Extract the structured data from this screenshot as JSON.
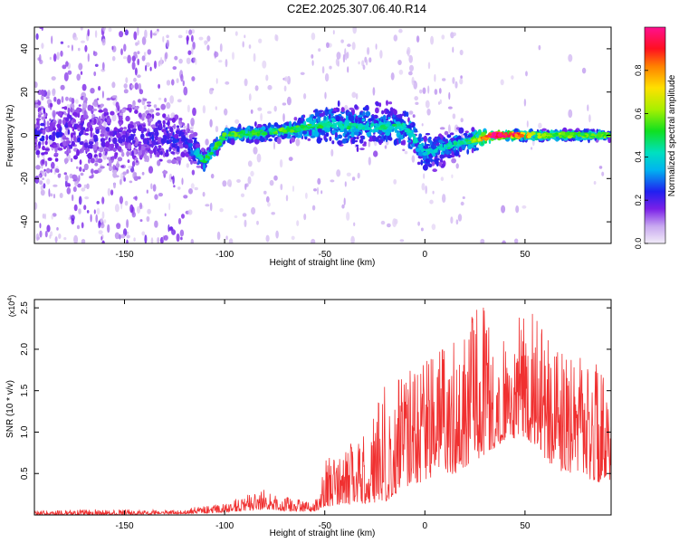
{
  "title": "C2E2.2025.307.06.40.R14",
  "colors": {
    "snr_line": "#f03030",
    "axes": "#000000",
    "background": "#ffffff"
  },
  "chart_data": [
    {
      "type": "heatmap",
      "name": "spectrogram",
      "xlabel": "Height of straight line (km)",
      "ylabel": "Frequency (Hz)",
      "xlim": [
        -195,
        93
      ],
      "ylim": [
        -50,
        50
      ],
      "xticks": [
        -150,
        -100,
        -50,
        0,
        50
      ],
      "yticks": [
        -40,
        -20,
        0,
        20,
        40
      ],
      "colorbar": {
        "label": "Normalized spectral amplitude",
        "range": [
          0.0,
          1.0
        ],
        "ticks": [
          0.0,
          0.2,
          0.4,
          0.6,
          0.8
        ],
        "tick_labels": [
          "0.0",
          "0.2",
          "0.4",
          "0.6",
          "0.8"
        ],
        "colormap": "rainbow (white/lavender - violet - blue - cyan - green - yellow - red - magenta)"
      },
      "ridge_profile": [
        {
          "x": -190,
          "f": 0,
          "spread": 30,
          "amp": 0.22
        },
        {
          "x": -150,
          "f": 0,
          "spread": 30,
          "amp": 0.2
        },
        {
          "x": -120,
          "f": -2,
          "spread": 12,
          "amp": 0.28
        },
        {
          "x": -110,
          "f": -12,
          "spread": 6,
          "amp": 0.45
        },
        {
          "x": -100,
          "f": 0,
          "spread": 4,
          "amp": 0.5
        },
        {
          "x": -70,
          "f": 2,
          "spread": 5,
          "amp": 0.5
        },
        {
          "x": -50,
          "f": 5,
          "spread": 12,
          "amp": 0.45
        },
        {
          "x": -30,
          "f": 4,
          "spread": 14,
          "amp": 0.4
        },
        {
          "x": -10,
          "f": 4,
          "spread": 12,
          "amp": 0.42
        },
        {
          "x": 0,
          "f": -8,
          "spread": 12,
          "amp": 0.38
        },
        {
          "x": 20,
          "f": -3,
          "spread": 8,
          "amp": 0.4
        },
        {
          "x": 35,
          "f": 0,
          "spread": 2,
          "amp": 1.0
        },
        {
          "x": 60,
          "f": 0,
          "spread": 3,
          "amp": 0.55
        },
        {
          "x": 90,
          "f": 0,
          "spread": 3,
          "amp": 0.5
        }
      ]
    },
    {
      "type": "line",
      "name": "snr",
      "xlabel": "Height of straight line (km)",
      "ylabel": "SNR (10 * v/v)",
      "multiplier_label": "(x10",
      "multiplier_exp": "4",
      "multiplier_close": ")",
      "xlim": [
        -195,
        93
      ],
      "ylim": [
        0,
        2.6
      ],
      "xticks": [
        -150,
        -100,
        -50,
        0,
        50
      ],
      "yticks": [
        0.5,
        1.0,
        1.5,
        2.0,
        2.5
      ],
      "ytick_labels": [
        "0.5",
        "1.0",
        "1.5",
        "2.0",
        "2.5"
      ],
      "envelope": [
        {
          "x": -195,
          "base": 0.0,
          "peak": 0.05
        },
        {
          "x": -160,
          "base": 0.0,
          "peak": 0.07
        },
        {
          "x": -125,
          "base": 0.01,
          "peak": 0.06
        },
        {
          "x": -100,
          "base": 0.03,
          "peak": 0.15
        },
        {
          "x": -80,
          "base": 0.07,
          "peak": 0.33
        },
        {
          "x": -70,
          "base": 0.04,
          "peak": 0.22
        },
        {
          "x": -55,
          "base": 0.04,
          "peak": 0.15
        },
        {
          "x": -50,
          "base": 0.1,
          "peak": 0.65
        },
        {
          "x": -30,
          "base": 0.14,
          "peak": 1.0
        },
        {
          "x": -20,
          "base": 0.16,
          "peak": 1.6
        },
        {
          "x": -10,
          "base": 0.3,
          "peak": 1.85
        },
        {
          "x": 0,
          "base": 0.42,
          "peak": 1.9
        },
        {
          "x": 15,
          "base": 0.5,
          "peak": 2.1
        },
        {
          "x": 28,
          "base": 0.7,
          "peak": 2.55
        },
        {
          "x": 40,
          "base": 0.9,
          "peak": 2.2
        },
        {
          "x": 50,
          "base": 0.95,
          "peak": 2.55
        },
        {
          "x": 65,
          "base": 0.55,
          "peak": 2.1
        },
        {
          "x": 80,
          "base": 0.45,
          "peak": 1.9
        },
        {
          "x": 93,
          "base": 0.35,
          "peak": 1.8
        }
      ]
    }
  ]
}
